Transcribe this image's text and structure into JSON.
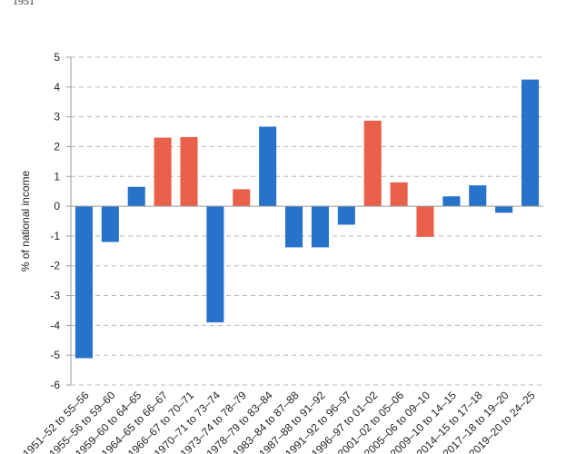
{
  "header": {
    "year_label": "1951"
  },
  "chart_data": {
    "type": "bar",
    "title": "",
    "xlabel": "",
    "ylabel": "% of national income",
    "ylim": [
      -6,
      5
    ],
    "yticks": [
      -6,
      -5,
      -4,
      -3,
      -2,
      -1,
      0,
      1,
      2,
      3,
      4,
      5
    ],
    "grid": true,
    "colors": {
      "blue": "#2773c9",
      "red": "#e8604a"
    },
    "categories": [
      "1951–52 to 55–56",
      "1955–56 to 59–60",
      "1959–60 to 64–65",
      "1964–65 to 66–67",
      "1966–67 to 70–71",
      "1970–71 to 73–74",
      "1973–74 to 78–79",
      "1978–79 to 83–84",
      "1983–84 to 87–88",
      "1987–88 to 91–92",
      "1991–92 to 96–97",
      "1996–97 to 01–02",
      "2001–02 to 05–06",
      "2005–06 to 09–10",
      "2009–10 to 14–15",
      "2014–15 to 17–18",
      "2017–18 to 19–20",
      "2019–20 to 24–25"
    ],
    "values": [
      -5.1,
      -1.2,
      0.65,
      2.3,
      2.32,
      -3.9,
      0.57,
      2.67,
      -1.38,
      -1.38,
      -0.62,
      2.87,
      0.8,
      -1.03,
      0.33,
      0.7,
      -0.22,
      4.25
    ],
    "bar_colors": [
      "blue",
      "blue",
      "blue",
      "red",
      "red",
      "blue",
      "red",
      "blue",
      "blue",
      "blue",
      "blue",
      "red",
      "red",
      "red",
      "blue",
      "blue",
      "blue",
      "blue"
    ]
  }
}
